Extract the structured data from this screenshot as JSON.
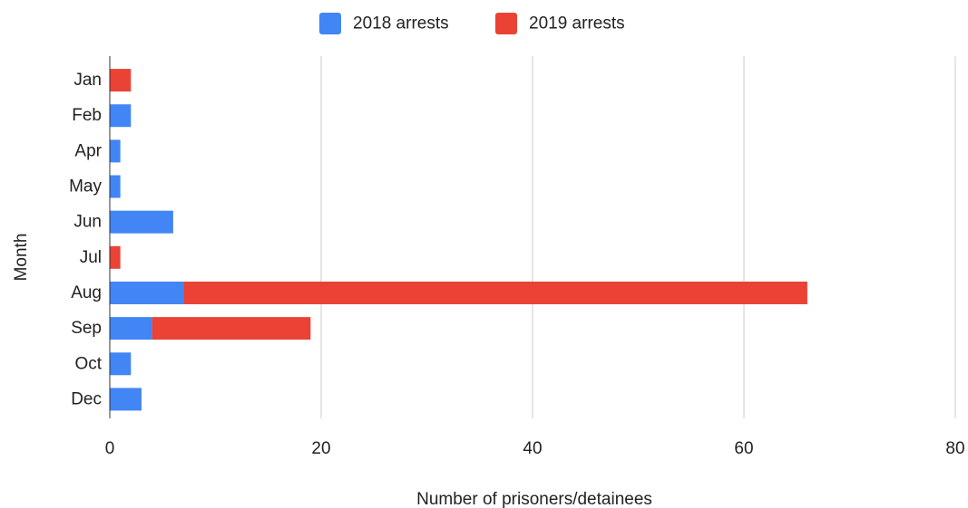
{
  "chart_data": {
    "type": "bar",
    "orientation": "horizontal",
    "stacked": true,
    "categories": [
      "Jan",
      "Feb",
      "Apr",
      "May",
      "Jun",
      "Jul",
      "Aug",
      "Sep",
      "Oct",
      "Dec"
    ],
    "series": [
      {
        "name": "2018 arrests",
        "color": "#4285f4",
        "values": [
          0,
          2,
          1,
          1,
          6,
          0,
          7,
          4,
          2,
          3
        ]
      },
      {
        "name": "2019 arrests",
        "color": "#ea4335",
        "values": [
          2,
          0,
          0,
          0,
          0,
          1,
          59,
          15,
          0,
          0
        ]
      }
    ],
    "xlabel": "Number of prisoners/detainees",
    "ylabel": "Month",
    "xlim": [
      0,
      80
    ],
    "xticks": [
      0,
      20,
      40,
      60,
      80
    ],
    "grid": true,
    "legend_position": "top-center"
  }
}
